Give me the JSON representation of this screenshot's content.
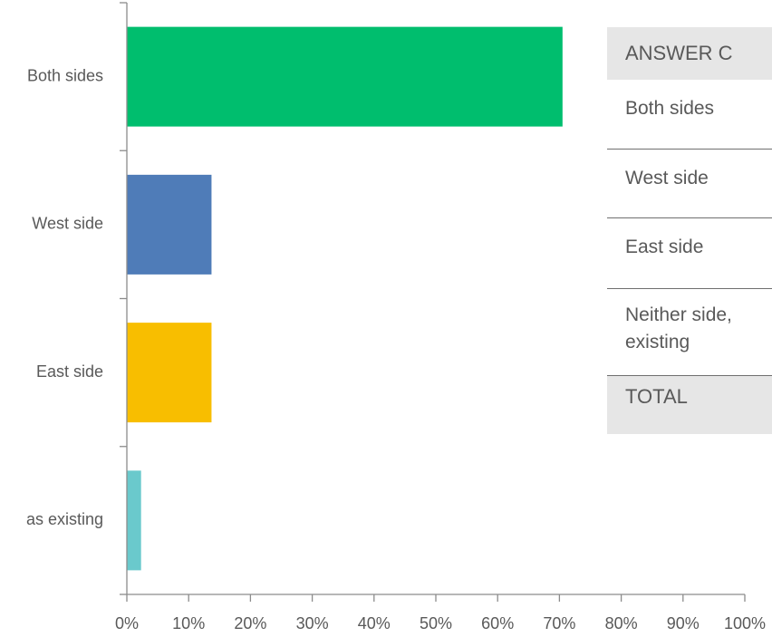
{
  "chart_data": {
    "type": "bar",
    "orientation": "horizontal",
    "categories": [
      "Both sides",
      "West side",
      "East side",
      "as existing"
    ],
    "values": [
      70.5,
      13.7,
      13.7,
      2.3
    ],
    "colors": [
      "#00be6e",
      "#4f7cb8",
      "#f8be00",
      "#6ac9cc"
    ],
    "xlim": [
      0,
      100
    ],
    "xticks": [
      "0%",
      "10%",
      "20%",
      "30%",
      "40%",
      "50%",
      "60%",
      "70%",
      "80%",
      "90%",
      "100%"
    ],
    "grid": false
  },
  "table": {
    "header": "ANSWER C",
    "rows": [
      "Both sides",
      "West side",
      "East side"
    ],
    "last_row_lines": [
      "Neither side,",
      "existing"
    ],
    "total": "TOTAL"
  }
}
